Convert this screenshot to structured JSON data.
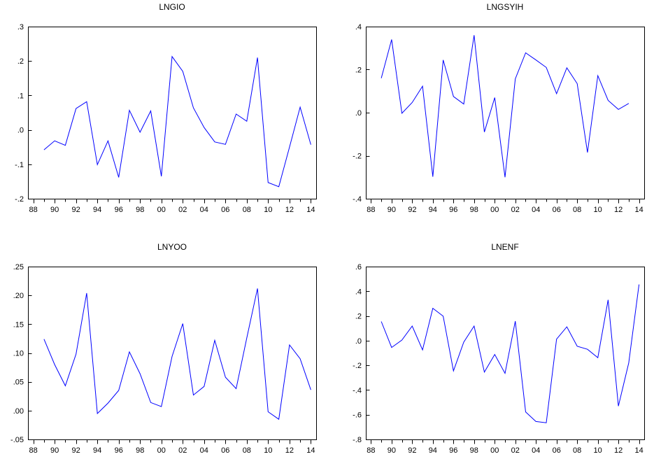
{
  "theme": {
    "line_color": "#0000ff",
    "frame_color": "#000000",
    "background": "#ffffff"
  },
  "chart_data": [
    {
      "type": "line",
      "title": "LNGIO",
      "xlabel": "",
      "ylabel": "",
      "x_tick_labels": [
        "88",
        "90",
        "92",
        "94",
        "96",
        "98",
        "00",
        "02",
        "04",
        "06",
        "08",
        "10",
        "12",
        "14"
      ],
      "x_ticks": [
        1988,
        1989,
        1990,
        1991,
        1992,
        1993,
        1994,
        1995,
        1996,
        1997,
        1998,
        1999,
        2000,
        2001,
        2002,
        2003,
        2004,
        2005,
        2006,
        2007,
        2008,
        2009,
        2010,
        2011,
        2012,
        2013,
        2014
      ],
      "y_tick_labels": [
        ".3",
        ".2",
        ".1",
        ".0",
        "-.1",
        "-.2"
      ],
      "y_tick_values": [
        0.3,
        0.2,
        0.1,
        0.0,
        -0.1,
        -0.2
      ],
      "ylim": [
        -0.2,
        0.3
      ],
      "xlim": [
        1987.5,
        2014.5
      ],
      "grid": false,
      "x": [
        1989,
        1990,
        1991,
        1992,
        1993,
        1994,
        1995,
        1996,
        1997,
        1998,
        1999,
        2000,
        2001,
        2002,
        2003,
        2004,
        2005,
        2006,
        2007,
        2008,
        2009,
        2010,
        2011,
        2012,
        2013,
        2014
      ],
      "values": [
        -0.058,
        -0.032,
        -0.045,
        0.062,
        0.082,
        -0.101,
        -0.032,
        -0.138,
        0.057,
        -0.007,
        0.055,
        -0.135,
        0.213,
        0.17,
        0.064,
        0.007,
        -0.035,
        -0.042,
        0.046,
        0.025,
        0.21,
        -0.153,
        -0.165,
        -0.05,
        0.066,
        -0.043
      ]
    },
    {
      "type": "line",
      "title": "LNGSYIH",
      "xlabel": "",
      "ylabel": "",
      "x_tick_labels": [
        "88",
        "90",
        "92",
        "94",
        "96",
        "98",
        "00",
        "02",
        "04",
        "06",
        "08",
        "10",
        "12",
        "14"
      ],
      "x_ticks": [
        1988,
        1989,
        1990,
        1991,
        1992,
        1993,
        1994,
        1995,
        1996,
        1997,
        1998,
        1999,
        2000,
        2001,
        2002,
        2003,
        2004,
        2005,
        2006,
        2007,
        2008,
        2009,
        2010,
        2011,
        2012,
        2013,
        2014
      ],
      "y_tick_labels": [
        ".4",
        ".2",
        ".0",
        "-.2",
        "-.4"
      ],
      "y_tick_values": [
        0.4,
        0.2,
        0.0,
        -0.2,
        -0.4
      ],
      "ylim": [
        -0.4,
        0.4
      ],
      "xlim": [
        1987.5,
        2014.5
      ],
      "grid": false,
      "x": [
        1989,
        1990,
        1991,
        1992,
        1993,
        1994,
        1995,
        1996,
        1997,
        1998,
        1999,
        2000,
        2001,
        2002,
        2003,
        2004,
        2005,
        2006,
        2007,
        2008,
        2009,
        2010,
        2011,
        2012,
        2013
      ],
      "values": [
        0.16,
        0.34,
        -0.003,
        0.047,
        0.123,
        -0.298,
        0.245,
        0.075,
        0.04,
        0.36,
        -0.09,
        0.07,
        -0.3,
        0.157,
        0.278,
        0.245,
        0.21,
        0.088,
        0.208,
        0.135,
        -0.185,
        0.172,
        0.057,
        0.015,
        0.043
      ]
    },
    {
      "type": "line",
      "title": "LNYOO",
      "xlabel": "",
      "ylabel": "",
      "x_tick_labels": [
        "88",
        "90",
        "92",
        "94",
        "96",
        "98",
        "00",
        "02",
        "04",
        "06",
        "08",
        "10",
        "12",
        "14"
      ],
      "x_ticks": [
        1988,
        1989,
        1990,
        1991,
        1992,
        1993,
        1994,
        1995,
        1996,
        1997,
        1998,
        1999,
        2000,
        2001,
        2002,
        2003,
        2004,
        2005,
        2006,
        2007,
        2008,
        2009,
        2010,
        2011,
        2012,
        2013,
        2014
      ],
      "y_tick_labels": [
        ".25",
        ".20",
        ".15",
        ".10",
        ".05",
        ".00",
        "-.05"
      ],
      "y_tick_values": [
        0.25,
        0.2,
        0.15,
        0.1,
        0.05,
        0.0,
        -0.05
      ],
      "ylim": [
        -0.05,
        0.25
      ],
      "xlim": [
        1987.5,
        2014.5
      ],
      "grid": false,
      "x": [
        1989,
        1990,
        1991,
        1992,
        1993,
        1994,
        1995,
        1996,
        1997,
        1998,
        1999,
        2000,
        2001,
        2002,
        2003,
        2004,
        2005,
        2006,
        2007,
        2008,
        2009,
        2010,
        2011,
        2012,
        2013,
        2014
      ],
      "values": [
        0.124,
        0.08,
        0.043,
        0.098,
        0.204,
        -0.005,
        0.013,
        0.035,
        0.102,
        0.064,
        0.014,
        0.007,
        0.094,
        0.151,
        0.027,
        0.042,
        0.122,
        0.058,
        0.038,
        0.126,
        0.212,
        -0.002,
        -0.015,
        0.114,
        0.09,
        0.036
      ]
    },
    {
      "type": "line",
      "title": "LNENF",
      "xlabel": "",
      "ylabel": "",
      "x_tick_labels": [
        "88",
        "90",
        "92",
        "94",
        "96",
        "98",
        "00",
        "02",
        "04",
        "06",
        "08",
        "10",
        "12",
        "14"
      ],
      "x_ticks": [
        1988,
        1989,
        1990,
        1991,
        1992,
        1993,
        1994,
        1995,
        1996,
        1997,
        1998,
        1999,
        2000,
        2001,
        2002,
        2003,
        2004,
        2005,
        2006,
        2007,
        2008,
        2009,
        2010,
        2011,
        2012,
        2013,
        2014
      ],
      "y_tick_labels": [
        ".6",
        ".4",
        ".2",
        ".0",
        "-.2",
        "-.4",
        "-.6",
        "-.8"
      ],
      "y_tick_values": [
        0.6,
        0.4,
        0.2,
        0.0,
        -0.2,
        -0.4,
        -0.6,
        -0.8
      ],
      "ylim": [
        -0.8,
        0.6
      ],
      "xlim": [
        1987.5,
        2014.5
      ],
      "grid": false,
      "x": [
        1989,
        1990,
        1991,
        1992,
        1993,
        1994,
        1995,
        1996,
        1997,
        1998,
        1999,
        2000,
        2001,
        2002,
        2003,
        2004,
        2005,
        2006,
        2007,
        2008,
        2009,
        2010,
        2011,
        2012,
        2013,
        2014
      ],
      "values": [
        0.155,
        -0.055,
        0.005,
        0.118,
        -0.075,
        0.262,
        0.198,
        -0.245,
        -0.012,
        0.118,
        -0.255,
        -0.112,
        -0.265,
        0.158,
        -0.578,
        -0.655,
        -0.665,
        0.012,
        0.112,
        -0.045,
        -0.07,
        -0.138,
        0.33,
        -0.53,
        -0.18,
        0.455
      ]
    }
  ]
}
